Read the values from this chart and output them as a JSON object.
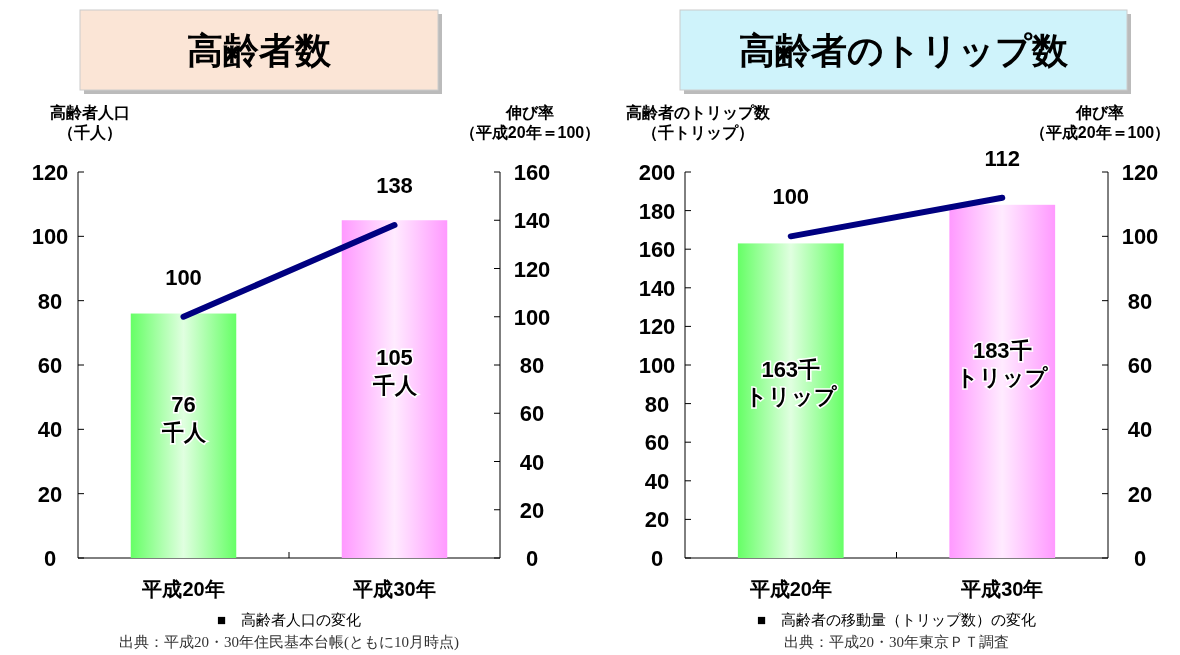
{
  "chart_data": [
    {
      "type": "bar",
      "title": "高齢者数",
      "ylabel": [
        "高齢者人口",
        "（千人）"
      ],
      "y2label": [
        "伸び率",
        "（平成20年＝100）"
      ],
      "categories": [
        "平成20年",
        "平成30年"
      ],
      "series": [
        {
          "colors": [
            "#66ff66",
            "#ff99ff"
          ],
          "values": [
            76,
            105
          ],
          "value_labels": [
            [
              "76",
              "千人"
            ],
            [
              "105",
              "千人"
            ]
          ]
        },
        {
          "type": "line",
          "axis": "y2",
          "color": "#000080",
          "values": [
            100,
            138
          ],
          "value_labels": [
            "100",
            "138"
          ]
        }
      ],
      "ylim": [
        0,
        120
      ],
      "yticks": [
        0,
        20,
        40,
        60,
        80,
        100,
        120
      ],
      "y2lim": [
        0,
        160
      ],
      "y2ticks": [
        0,
        20,
        40,
        60,
        80,
        100,
        120,
        140,
        160
      ],
      "grid": false,
      "annotations": [
        "■　高齢者人口の変化",
        "出典：平成20・30年住民基本台帳(ともに10月時点)"
      ]
    },
    {
      "type": "bar",
      "title": "高齢者のトリップ数",
      "ylabel": [
        "高齢者のトリップ数",
        "（千トリップ）"
      ],
      "y2label": [
        "伸び率",
        "（平成20年＝100）"
      ],
      "categories": [
        "平成20年",
        "平成30年"
      ],
      "series": [
        {
          "colors": [
            "#66ff66",
            "#ff99ff"
          ],
          "values": [
            163,
            183
          ],
          "value_labels": [
            [
              "163千",
              "トリップ"
            ],
            [
              "183千",
              "トリップ"
            ]
          ]
        },
        {
          "type": "line",
          "axis": "y2",
          "color": "#000080",
          "values": [
            100,
            112
          ],
          "value_labels": [
            "100",
            "112"
          ]
        }
      ],
      "ylim": [
        0,
        200
      ],
      "yticks": [
        0,
        20,
        40,
        60,
        80,
        100,
        120,
        140,
        160,
        180,
        200
      ],
      "y2lim": [
        0,
        120
      ],
      "y2ticks": [
        0,
        20,
        40,
        60,
        80,
        100,
        120
      ],
      "grid": false,
      "annotations": [
        "■　高齢者の移動量（トリップ数）の変化",
        "出典：平成20・30年東京ＰＴ調査"
      ]
    }
  ]
}
